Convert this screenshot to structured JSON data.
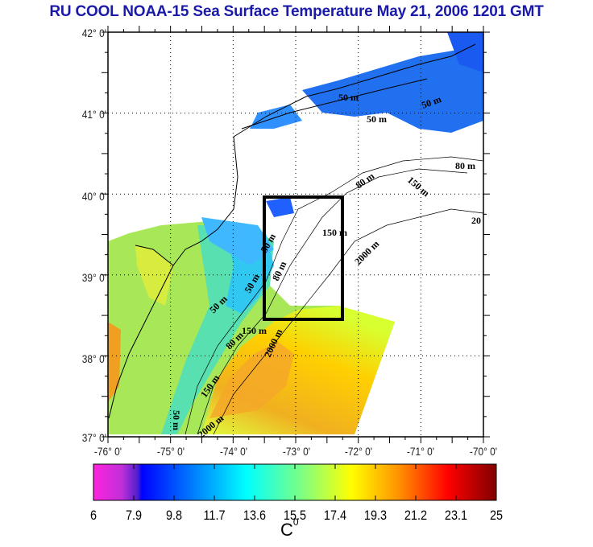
{
  "title": "RU COOL  NOAA-15 Sea Surface Temperature May 21, 2006 1201 GMT",
  "map": {
    "lon_ticks": [
      "-76° 0'",
      "-75° 0'",
      "-74° 0'",
      "-73° 0'",
      "-72° 0'",
      "-71° 0'",
      "-70° 0'"
    ],
    "lat_ticks": [
      "42° 0'",
      "41° 0'",
      "40° 0'",
      "39° 0'",
      "38° 0'",
      "37° 0'"
    ],
    "lon_range": [
      -76,
      -70
    ],
    "lat_range": [
      37,
      42
    ],
    "box": {
      "lon": [
        -73.5,
        -72.2
      ],
      "lat": [
        38.5,
        40.0
      ]
    },
    "contour_labels": [
      "50 m",
      "50 m",
      "50 m",
      "80 m",
      "80 m",
      "150 m",
      "150 m",
      "150 m",
      "2000 m",
      "2000 m",
      "2000 m",
      "20",
      "50 m",
      "50 m",
      "50 m",
      "80 m",
      "80 m",
      "150 m",
      "50 m"
    ]
  },
  "colorbar": {
    "ticks": [
      "6",
      "7.9",
      "9.8",
      "11.7",
      "13.6",
      "15.5",
      "17.4",
      "19.3",
      "21.2",
      "23.1",
      "25"
    ],
    "unit": "C",
    "unit_sup": "0",
    "colors": [
      "#ff22dd",
      "#9a2fd0",
      "#0000ff",
      "#0080ff",
      "#00ffff",
      "#80ff80",
      "#ffff00",
      "#ff8000",
      "#ff0000",
      "#800000"
    ]
  }
}
